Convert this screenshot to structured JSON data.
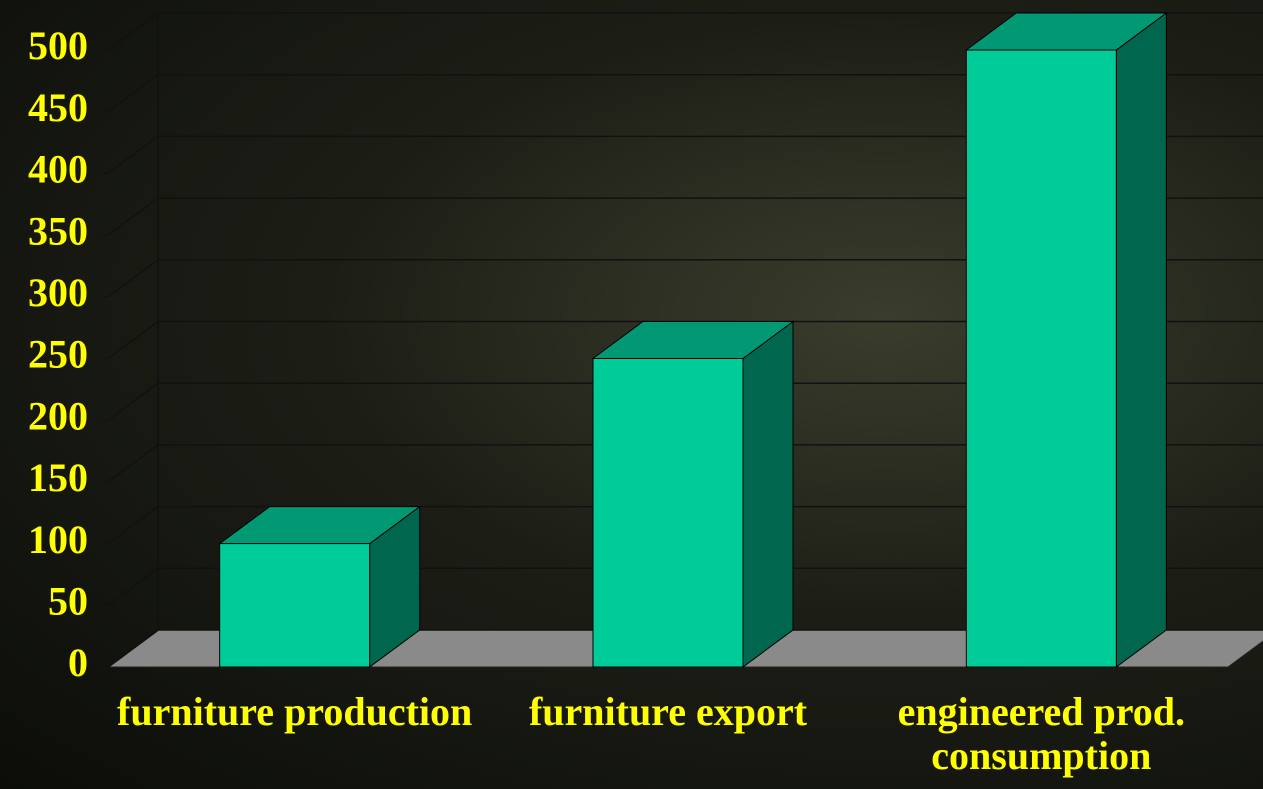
{
  "chart_data": {
    "type": "bar3d",
    "categories": [
      "furniture production",
      "furniture export",
      "engineered prod. consumption"
    ],
    "values": [
      100,
      250,
      500
    ],
    "color": "#00cc99",
    "ylim": [
      0,
      500
    ],
    "yticks": [
      0,
      50,
      100,
      150,
      200,
      250,
      300,
      350,
      400,
      450,
      500
    ],
    "grid": true
  }
}
